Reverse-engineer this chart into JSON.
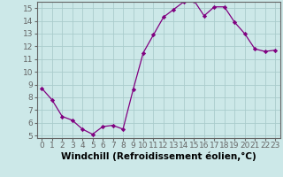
{
  "x": [
    0,
    1,
    2,
    3,
    4,
    5,
    6,
    7,
    8,
    9,
    10,
    11,
    12,
    13,
    14,
    15,
    16,
    17,
    18,
    19,
    20,
    21,
    22,
    23
  ],
  "y": [
    8.7,
    7.8,
    6.5,
    6.2,
    5.5,
    5.1,
    5.7,
    5.8,
    5.5,
    8.6,
    11.5,
    12.9,
    14.3,
    14.9,
    15.5,
    15.6,
    14.4,
    15.1,
    15.1,
    13.9,
    13.0,
    11.8,
    11.6,
    11.7
  ],
  "xlabel": "Windchill (Refroidissement éolien,°C)",
  "ylim_min": 4.8,
  "ylim_max": 15.5,
  "xlim_min": -0.5,
  "xlim_max": 23.5,
  "yticks": [
    5,
    6,
    7,
    8,
    9,
    10,
    11,
    12,
    13,
    14,
    15
  ],
  "xticks": [
    0,
    1,
    2,
    3,
    4,
    5,
    6,
    7,
    8,
    9,
    10,
    11,
    12,
    13,
    14,
    15,
    16,
    17,
    18,
    19,
    20,
    21,
    22,
    23
  ],
  "line_color": "#800080",
  "marker_color": "#800080",
  "bg_color": "#cce8e8",
  "grid_color": "#aacccc",
  "xlabel_fontsize": 7.5,
  "tick_fontsize": 6.5,
  "spine_color": "#666666"
}
